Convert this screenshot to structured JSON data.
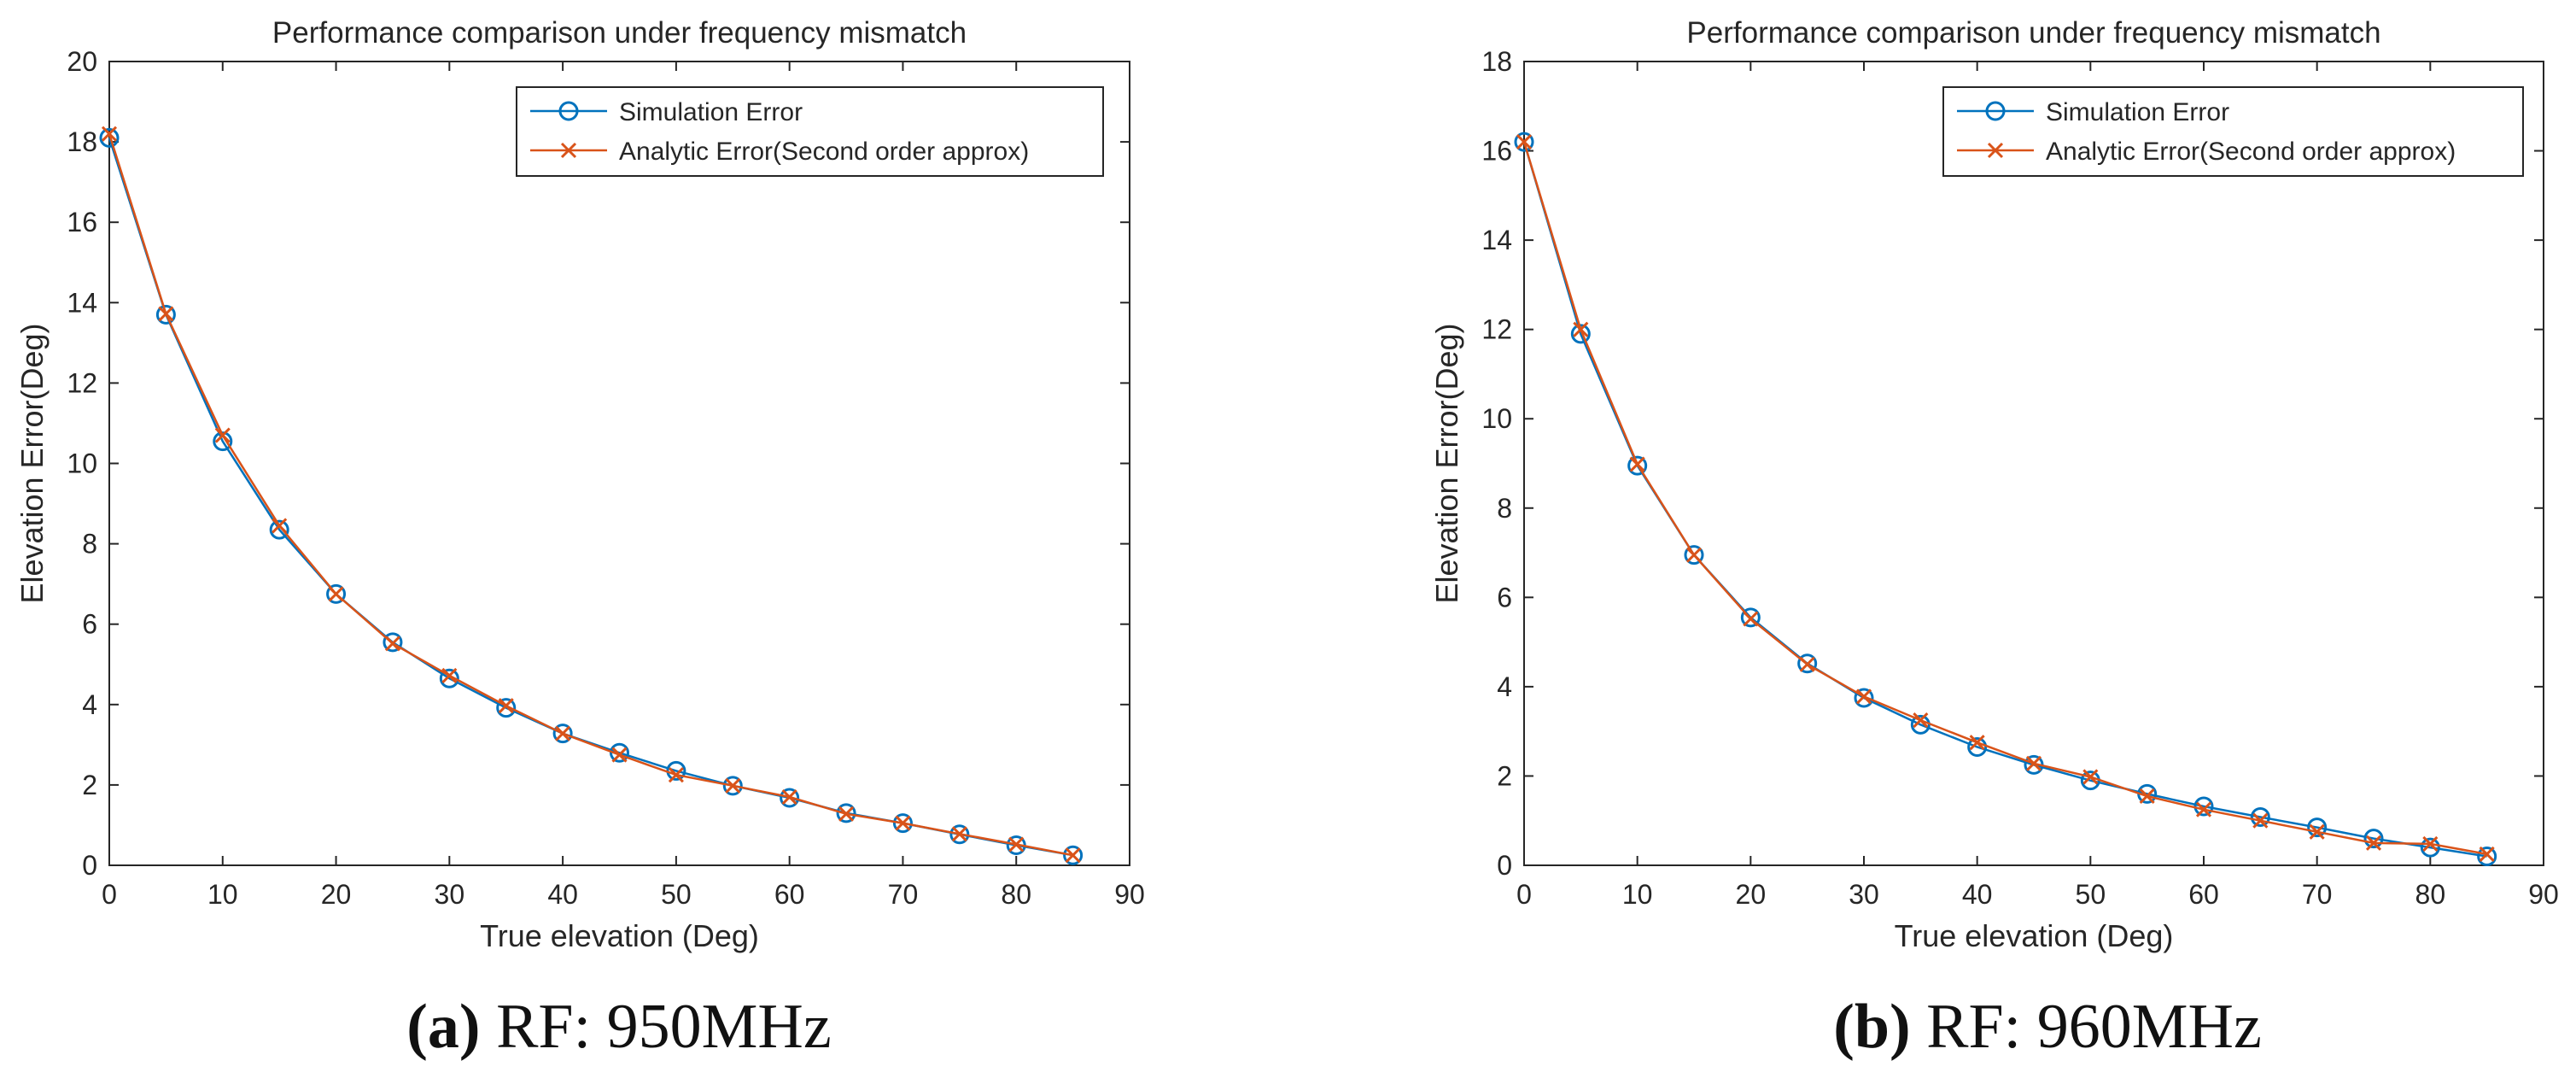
{
  "chart_data": [
    {
      "type": "line",
      "title": "Performance comparison under frequency mismatch",
      "xlabel": "True elevation (Deg)",
      "ylabel": "Elevation Error(Deg)",
      "xlim": [
        0,
        90
      ],
      "ylim": [
        0,
        20
      ],
      "xticks": [
        0,
        10,
        20,
        30,
        40,
        50,
        60,
        70,
        80,
        90
      ],
      "yticks": [
        0,
        2,
        4,
        6,
        8,
        10,
        12,
        14,
        16,
        18,
        20
      ],
      "grid": false,
      "legend_position": "top-right",
      "x": [
        0,
        5,
        10,
        15,
        20,
        25,
        30,
        35,
        40,
        45,
        50,
        55,
        60,
        65,
        70,
        75,
        80,
        85
      ],
      "series": [
        {
          "name": "Simulation Error",
          "marker": "circle",
          "color": "#0072BD",
          "values": [
            18.1,
            13.7,
            10.55,
            8.35,
            6.75,
            5.55,
            4.65,
            3.92,
            3.28,
            2.8,
            2.35,
            1.98,
            1.68,
            1.3,
            1.05,
            0.77,
            0.5,
            0.25
          ]
        },
        {
          "name": "Analytic Error(Second order approx)",
          "marker": "x",
          "color": "#D95319",
          "values": [
            18.2,
            13.72,
            10.7,
            8.45,
            6.75,
            5.52,
            4.72,
            3.97,
            3.28,
            2.75,
            2.25,
            1.98,
            1.7,
            1.28,
            1.05,
            0.78,
            0.52,
            0.25
          ]
        }
      ],
      "caption": {
        "letter": "(a)",
        "text": " RF: 950MHz"
      }
    },
    {
      "type": "line",
      "title": "Performance comparison under frequency mismatch",
      "xlabel": "True elevation (Deg)",
      "ylabel": "Elevation Error(Deg)",
      "xlim": [
        0,
        90
      ],
      "ylim": [
        0,
        18
      ],
      "xticks": [
        0,
        10,
        20,
        30,
        40,
        50,
        60,
        70,
        80,
        90
      ],
      "yticks": [
        0,
        2,
        4,
        6,
        8,
        10,
        12,
        14,
        16,
        18
      ],
      "grid": false,
      "legend_position": "top-right",
      "x": [
        0,
        5,
        10,
        15,
        20,
        25,
        30,
        35,
        40,
        45,
        50,
        55,
        60,
        65,
        70,
        75,
        80,
        85
      ],
      "series": [
        {
          "name": "Simulation Error",
          "marker": "circle",
          "color": "#0072BD",
          "values": [
            16.2,
            11.9,
            8.95,
            6.95,
            5.55,
            4.52,
            3.75,
            3.15,
            2.65,
            2.25,
            1.9,
            1.6,
            1.32,
            1.08,
            0.85,
            0.6,
            0.4,
            0.2
          ]
        },
        {
          "name": "Analytic Error(Second order approx)",
          "marker": "x",
          "color": "#D95319",
          "values": [
            16.2,
            12.0,
            8.98,
            6.95,
            5.52,
            4.5,
            3.78,
            3.25,
            2.75,
            2.28,
            1.98,
            1.55,
            1.25,
            1.0,
            0.75,
            0.5,
            0.48,
            0.25
          ]
        }
      ],
      "caption": {
        "letter": "(b)",
        "text": " RF: 960MHz"
      }
    }
  ]
}
